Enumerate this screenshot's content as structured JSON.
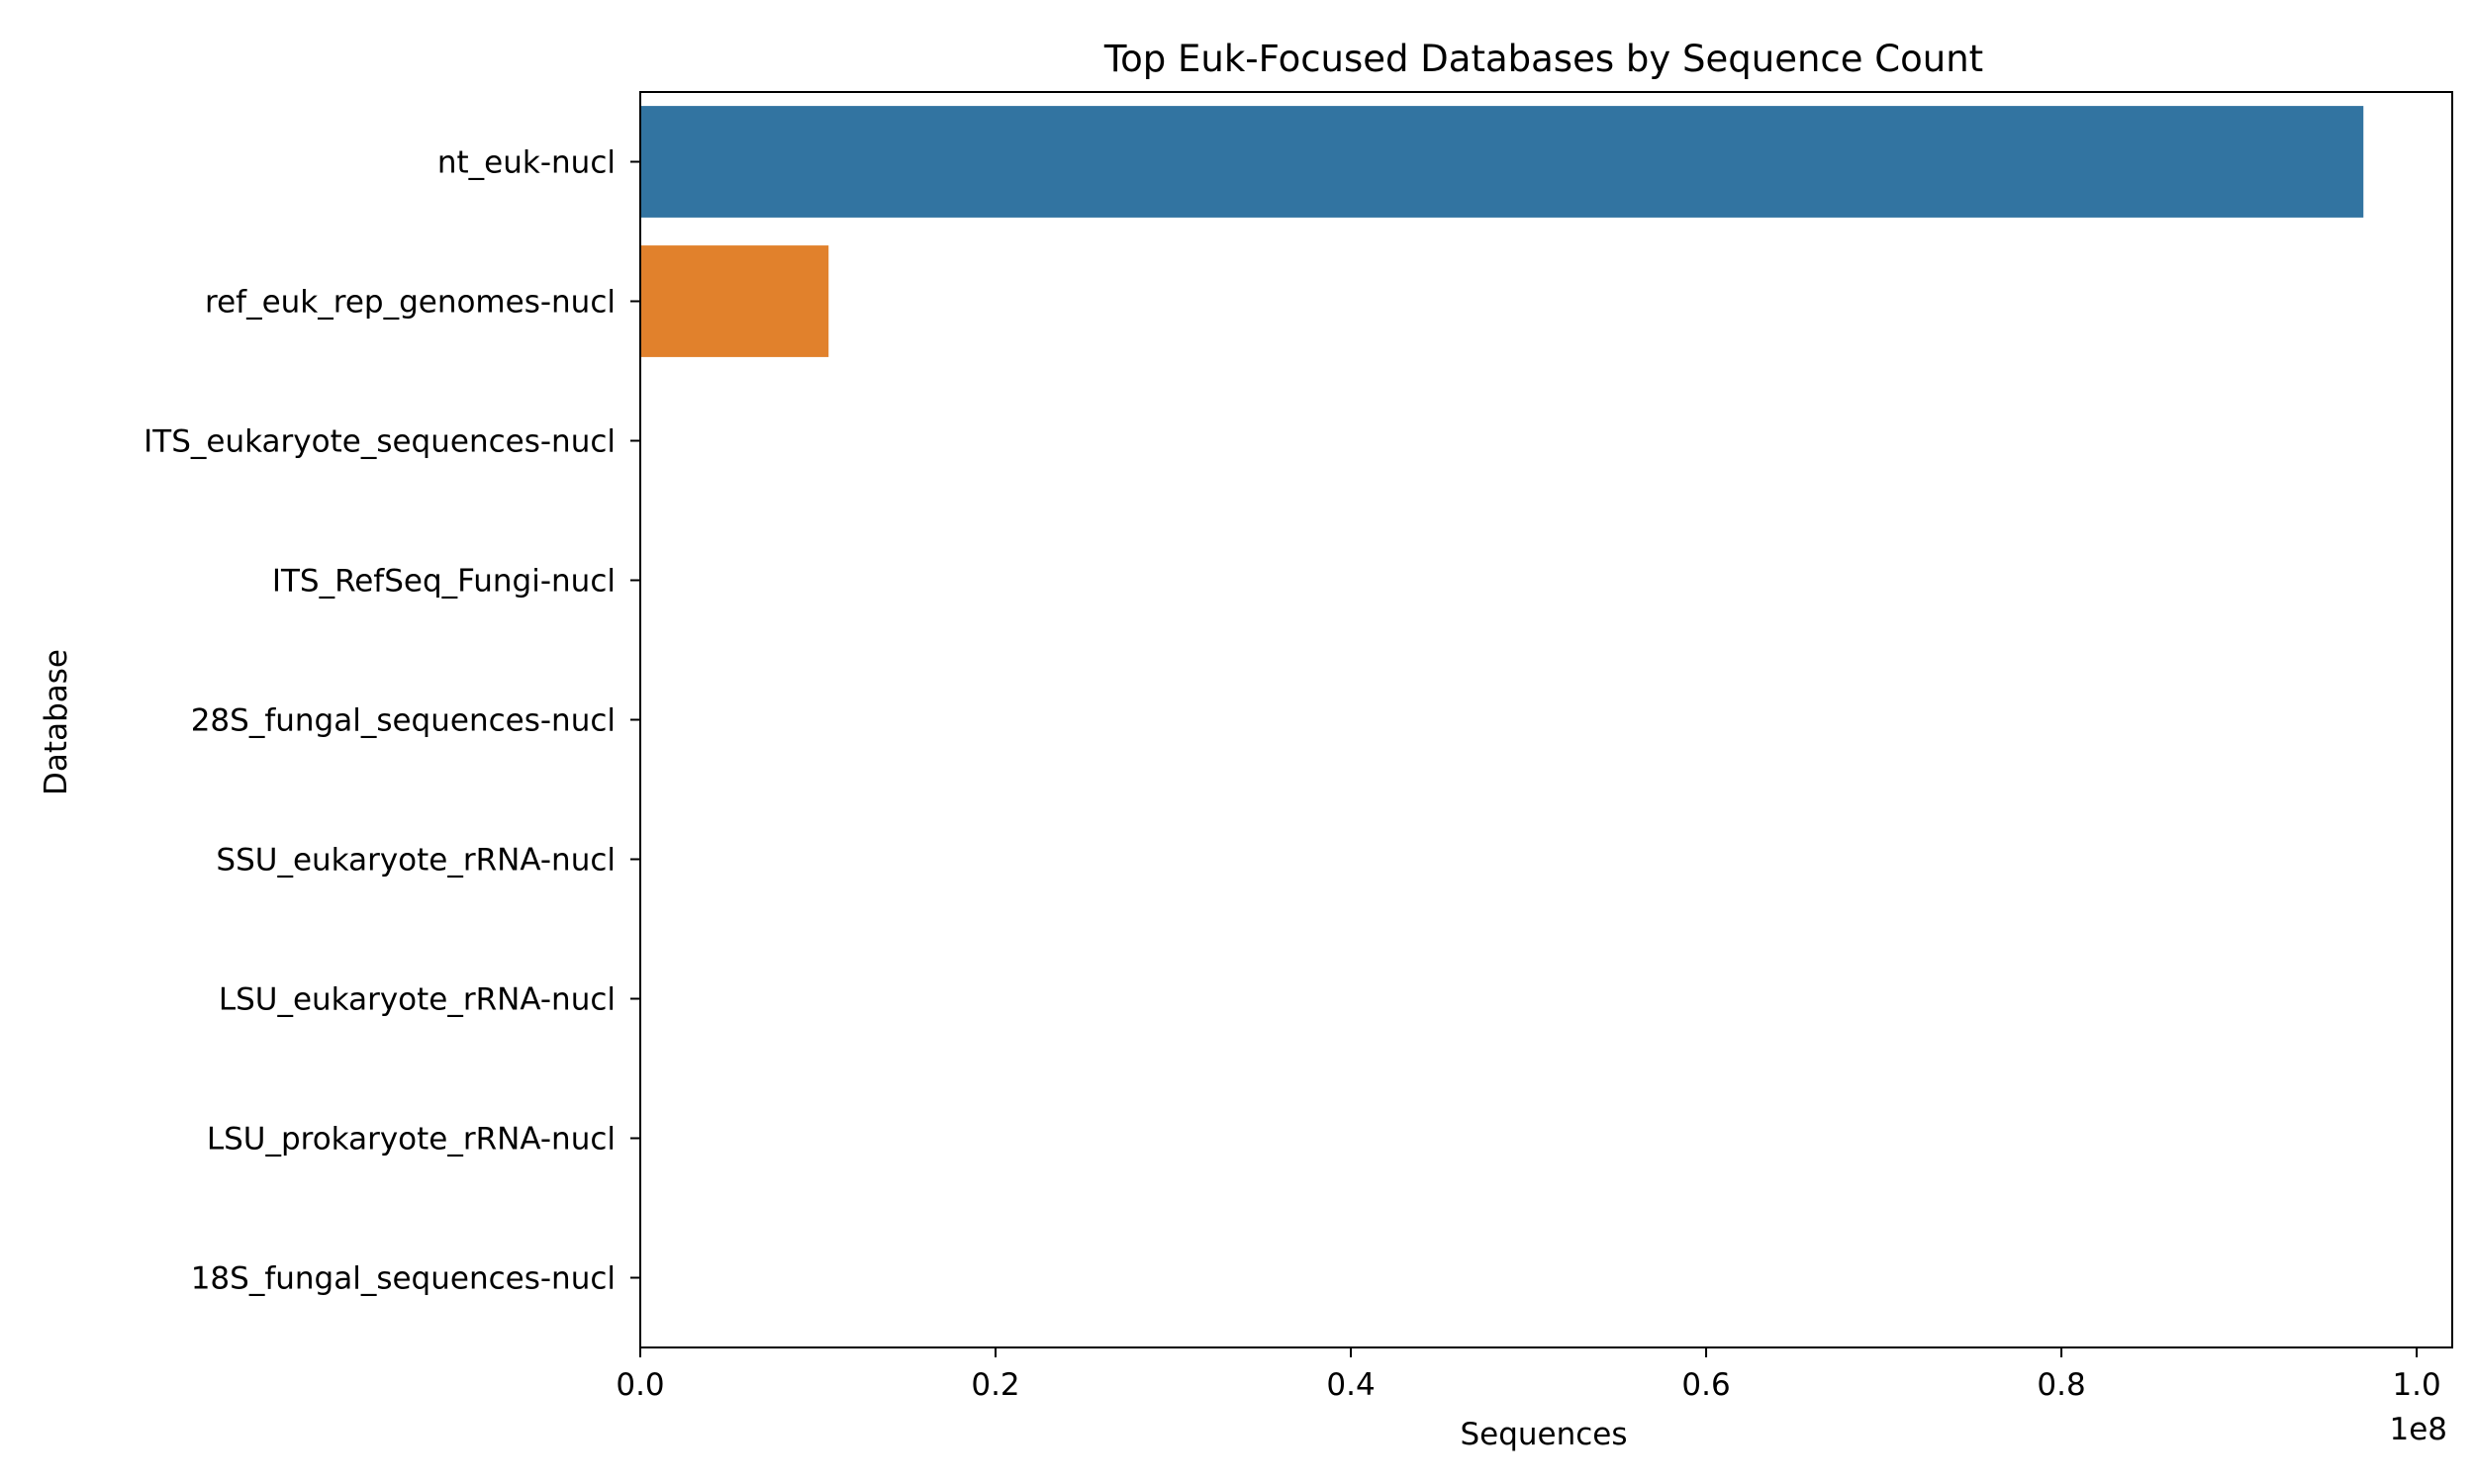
{
  "chart_data": {
    "type": "bar",
    "orientation": "horizontal",
    "title": "Top Euk-Focused Databases by Sequence Count",
    "xlabel": "Sequences",
    "ylabel": "Database",
    "x_offset_label": "1e8",
    "xlim": [
      0,
      102000000
    ],
    "x_ticks": [
      0,
      20000000,
      40000000,
      60000000,
      80000000,
      100000000
    ],
    "x_tick_labels": [
      "0.0",
      "0.2",
      "0.4",
      "0.6",
      "0.8",
      "1.0"
    ],
    "grid": false,
    "categories": [
      "nt_euk-nucl",
      "ref_euk_rep_genomes-nucl",
      "ITS_eukaryote_sequences-nucl",
      "ITS_RefSeq_Fungi-nucl",
      "28S_fungal_sequences-nucl",
      "SSU_eukaryote_rRNA-nucl",
      "LSU_eukaryote_rRNA-nucl",
      "LSU_prokaryote_rRNA-nucl",
      "18S_fungal_sequences-nucl"
    ],
    "values": [
      97000000,
      10600000,
      40000,
      30000,
      20000,
      15000,
      12000,
      10000,
      8000
    ],
    "colors": [
      "#3274a1",
      "#e1812c",
      "#3a923a",
      "#c03d3e",
      "#9372b2",
      "#845b53",
      "#d684bd",
      "#7f7f7f",
      "#a9aa35"
    ]
  }
}
